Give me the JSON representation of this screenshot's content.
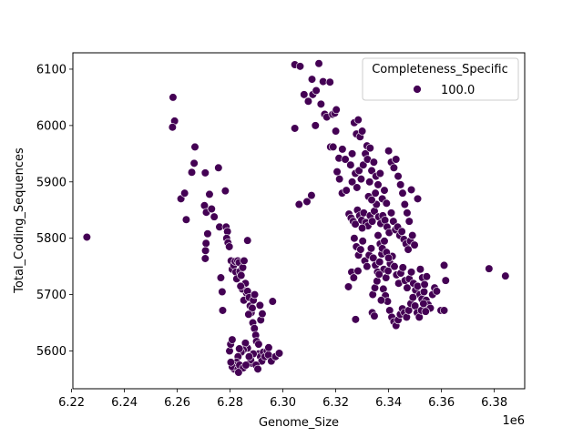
{
  "chart_data": {
    "type": "scatter",
    "xlabel": "Genome_Size",
    "ylabel": "Total_Coding_Sequences",
    "x_offset_label": "1e6",
    "x_scale": 1000000,
    "xlim": [
      6.2205,
      6.3915
    ],
    "ylim": [
      5533,
      6129
    ],
    "x_ticks": [
      6.22,
      6.24,
      6.26,
      6.28,
      6.3,
      6.32,
      6.34,
      6.36,
      6.38
    ],
    "x_tick_labels": [
      "6.22",
      "6.24",
      "6.26",
      "6.28",
      "6.30",
      "6.32",
      "6.34",
      "6.36",
      "6.38"
    ],
    "y_ticks": [
      5600,
      5700,
      5800,
      5900,
      6000,
      6100
    ],
    "y_tick_labels": [
      "5600",
      "5700",
      "5800",
      "5900",
      "6000",
      "6100"
    ],
    "grid": false,
    "legend": {
      "placement": "top-right",
      "title": "Completeness_Specific",
      "entries": [
        {
          "label": "100.0",
          "color": "#440154"
        }
      ]
    },
    "series": [
      {
        "name": "100.0",
        "color": "#440154",
        "points": [
          [
            6.2258,
            5802
          ],
          [
            6.2584,
            6050
          ],
          [
            6.259,
            6008
          ],
          [
            6.2582,
            5997
          ],
          [
            6.2614,
            5870
          ],
          [
            6.2628,
            5880
          ],
          [
            6.2634,
            5833
          ],
          [
            6.2655,
            5917
          ],
          [
            6.2664,
            5933
          ],
          [
            6.2667,
            5962
          ],
          [
            6.2703,
            5858
          ],
          [
            6.2706,
            5916
          ],
          [
            6.271,
            5846
          ],
          [
            6.2715,
            5808
          ],
          [
            6.2709,
            5791
          ],
          [
            6.2707,
            5778
          ],
          [
            6.2706,
            5764
          ],
          [
            6.2722,
            5878
          ],
          [
            6.273,
            5852
          ],
          [
            6.274,
            5838
          ],
          [
            6.2756,
            5925
          ],
          [
            6.276,
            5820
          ],
          [
            6.2765,
            5730
          ],
          [
            6.277,
            5705
          ],
          [
            6.2772,
            5672
          ],
          [
            6.2782,
            5884
          ],
          [
            6.2785,
            5820
          ],
          [
            6.279,
            5812
          ],
          [
            6.2787,
            5800
          ],
          [
            6.2792,
            5792
          ],
          [
            6.2797,
            5785
          ],
          [
            6.2804,
            5760
          ],
          [
            6.2808,
            5745
          ],
          [
            6.2814,
            5752
          ],
          [
            6.2819,
            5759
          ],
          [
            6.2822,
            5740
          ],
          [
            6.2825,
            5728
          ],
          [
            6.2829,
            5760
          ],
          [
            6.2834,
            5757
          ],
          [
            6.2837,
            5741
          ],
          [
            6.2842,
            5734
          ],
          [
            6.2848,
            5748
          ],
          [
            6.2853,
            5760
          ],
          [
            6.2858,
            5720
          ],
          [
            6.2866,
            5796
          ],
          [
            6.2862,
            5703
          ],
          [
            6.2846,
            5710
          ],
          [
            6.284,
            5715
          ],
          [
            6.2852,
            5690
          ],
          [
            6.2866,
            5706
          ],
          [
            6.2872,
            5695
          ],
          [
            6.2876,
            5680
          ],
          [
            6.288,
            5668
          ],
          [
            6.2884,
            5676
          ],
          [
            6.2888,
            5690
          ],
          [
            6.2893,
            5700
          ],
          [
            6.287,
            5665
          ],
          [
            6.2886,
            5650
          ],
          [
            6.2892,
            5640
          ],
          [
            6.2897,
            5628
          ],
          [
            6.29,
            5617
          ],
          [
            6.2908,
            5612
          ],
          [
            6.2913,
            5681
          ],
          [
            6.2916,
            5655
          ],
          [
            6.2922,
            5666
          ],
          [
            6.2908,
            5595
          ],
          [
            6.2915,
            5590
          ],
          [
            6.292,
            5582
          ],
          [
            6.2926,
            5598
          ],
          [
            6.2932,
            5590
          ],
          [
            6.294,
            5600
          ],
          [
            6.2945,
            5593
          ],
          [
            6.2888,
            5595
          ],
          [
            6.2884,
            5578
          ],
          [
            6.2878,
            5584
          ],
          [
            6.2872,
            5590
          ],
          [
            6.2866,
            5605
          ],
          [
            6.2858,
            5614
          ],
          [
            6.285,
            5602
          ],
          [
            6.2842,
            5598
          ],
          [
            6.2835,
            5604
          ],
          [
            6.283,
            5590
          ],
          [
            6.2825,
            5580
          ],
          [
            6.282,
            5574
          ],
          [
            6.2815,
            5568
          ],
          [
            6.2808,
            5572
          ],
          [
            6.2803,
            5580
          ],
          [
            6.2798,
            5600
          ],
          [
            6.2802,
            5612
          ],
          [
            6.2808,
            5620
          ],
          [
            6.283,
            5568
          ],
          [
            6.2836,
            5575
          ],
          [
            6.285,
            5570
          ],
          [
            6.286,
            5575
          ],
          [
            6.2898,
            5575
          ],
          [
            6.2905,
            5568
          ],
          [
            6.2956,
            5582
          ],
          [
            6.2972,
            5590
          ],
          [
            6.2986,
            5596
          ],
          [
            6.2961,
            5688
          ],
          [
            6.2946,
            5606
          ],
          [
            6.2832,
            5562
          ],
          [
            6.3045,
            6108
          ],
          [
            6.3065,
            6105
          ],
          [
            6.308,
            6055
          ],
          [
            6.3096,
            6043
          ],
          [
            6.311,
            6082
          ],
          [
            6.3113,
            6055
          ],
          [
            6.3126,
            6062
          ],
          [
            6.3136,
            6110
          ],
          [
            6.3144,
            6038
          ],
          [
            6.3152,
            6078
          ],
          [
            6.3158,
            6020
          ],
          [
            6.3166,
            6015
          ],
          [
            6.3178,
            6077
          ],
          [
            6.3188,
            6020
          ],
          [
            6.3196,
            6022
          ],
          [
            6.3202,
            6028
          ],
          [
            6.3123,
            6000
          ],
          [
            6.3045,
            5995
          ],
          [
            6.3061,
            5860
          ],
          [
            6.3091,
            5865
          ],
          [
            6.3108,
            5876
          ],
          [
            6.318,
            5962
          ],
          [
            6.319,
            5962
          ],
          [
            6.32,
            5990
          ],
          [
            6.3212,
            5942
          ],
          [
            6.3225,
            5958
          ],
          [
            6.3236,
            5940
          ],
          [
            6.3205,
            5918
          ],
          [
            6.3214,
            5905
          ],
          [
            6.3224,
            5880
          ],
          [
            6.324,
            5885
          ],
          [
            6.3256,
            5930
          ],
          [
            6.3262,
            5950
          ],
          [
            6.327,
            6005
          ],
          [
            6.3278,
            5985
          ],
          [
            6.3285,
            6010
          ],
          [
            6.3292,
            5980
          ],
          [
            6.33,
            5990
          ],
          [
            6.3262,
            5900
          ],
          [
            6.3274,
            5915
          ],
          [
            6.328,
            5890
          ],
          [
            6.3288,
            5920
          ],
          [
            6.3296,
            5905
          ],
          [
            6.3304,
            5930
          ],
          [
            6.3312,
            5950
          ],
          [
            6.332,
            5940
          ],
          [
            6.3328,
            5900
          ],
          [
            6.3336,
            5920
          ],
          [
            6.3344,
            5935
          ],
          [
            6.3352,
            5910
          ],
          [
            6.336,
            5895
          ],
          [
            6.3368,
            5915
          ],
          [
            6.325,
            5843
          ],
          [
            6.3258,
            5836
          ],
          [
            6.3266,
            5830
          ],
          [
            6.3274,
            5825
          ],
          [
            6.3282,
            5850
          ],
          [
            6.329,
            5840
          ],
          [
            6.3298,
            5832
          ],
          [
            6.3306,
            5845
          ],
          [
            6.3314,
            5828
          ],
          [
            6.3322,
            5822
          ],
          [
            6.333,
            5840
          ],
          [
            6.3338,
            5830
          ],
          [
            6.3346,
            5848
          ],
          [
            6.3354,
            5860
          ],
          [
            6.3362,
            5838
          ],
          [
            6.337,
            5826
          ],
          [
            6.3378,
            5840
          ],
          [
            6.3386,
            5832
          ],
          [
            6.3394,
            5820
          ],
          [
            6.3402,
            5810
          ],
          [
            6.341,
            5845
          ],
          [
            6.3418,
            5830
          ],
          [
            6.3426,
            5815
          ],
          [
            6.3434,
            5820
          ],
          [
            6.3442,
            5805
          ],
          [
            6.345,
            5812
          ],
          [
            6.3458,
            5798
          ],
          [
            6.3466,
            5790
          ],
          [
            6.3474,
            5780
          ],
          [
            6.3482,
            5795
          ],
          [
            6.349,
            5805
          ],
          [
            6.3498,
            5788
          ],
          [
            6.327,
            5800
          ],
          [
            6.3278,
            5785
          ],
          [
            6.3286,
            5770
          ],
          [
            6.3294,
            5780
          ],
          [
            6.3302,
            5795
          ],
          [
            6.331,
            5760
          ],
          [
            6.3318,
            5750
          ],
          [
            6.3326,
            5770
          ],
          [
            6.3334,
            5782
          ],
          [
            6.3342,
            5765
          ],
          [
            6.335,
            5752
          ],
          [
            6.3358,
            5740
          ],
          [
            6.3366,
            5758
          ],
          [
            6.3374,
            5772
          ],
          [
            6.3382,
            5745
          ],
          [
            6.339,
            5730
          ],
          [
            6.3398,
            5742
          ],
          [
            6.3406,
            5755
          ],
          [
            6.3414,
            5768
          ],
          [
            6.3422,
            5750
          ],
          [
            6.343,
            5735
          ],
          [
            6.3438,
            5720
          ],
          [
            6.3446,
            5738
          ],
          [
            6.3454,
            5748
          ],
          [
            6.3462,
            5725
          ],
          [
            6.347,
            5712
          ],
          [
            6.3478,
            5728
          ],
          [
            6.3486,
            5740
          ],
          [
            6.3494,
            5720
          ],
          [
            6.3502,
            5708
          ],
          [
            6.351,
            5715
          ],
          [
            6.3518,
            5700
          ],
          [
            6.3526,
            5692
          ],
          [
            6.3534,
            5705
          ],
          [
            6.3542,
            5690
          ],
          [
            6.355,
            5682
          ],
          [
            6.3558,
            5676
          ],
          [
            6.3566,
            5700
          ],
          [
            6.3574,
            5712
          ],
          [
            6.3582,
            5706
          ],
          [
            6.3598,
            5672
          ],
          [
            6.361,
            5672
          ],
          [
            6.3616,
            5725
          ],
          [
            6.361,
            5752
          ],
          [
            6.326,
            5740
          ],
          [
            6.3268,
            5730
          ],
          [
            6.3284,
            5742
          ],
          [
            6.3248,
            5714
          ],
          [
            6.338,
            5710
          ],
          [
            6.3388,
            5698
          ],
          [
            6.3396,
            5688
          ],
          [
            6.3404,
            5672
          ],
          [
            6.3412,
            5660
          ],
          [
            6.342,
            5652
          ],
          [
            6.3428,
            5645
          ],
          [
            6.3436,
            5655
          ],
          [
            6.3444,
            5665
          ],
          [
            6.3452,
            5675
          ],
          [
            6.346,
            5668
          ],
          [
            6.3468,
            5660
          ],
          [
            6.3476,
            5672
          ],
          [
            6.3484,
            5684
          ],
          [
            6.3492,
            5695
          ],
          [
            6.35,
            5680
          ],
          [
            6.3508,
            5668
          ],
          [
            6.3516,
            5660
          ],
          [
            6.3524,
            5672
          ],
          [
            6.3532,
            5684
          ],
          [
            6.354,
            5670
          ],
          [
            6.3338,
            5668
          ],
          [
            6.3346,
            5662
          ],
          [
            6.3275,
            5656
          ],
          [
            6.34,
            5955
          ],
          [
            6.341,
            5935
          ],
          [
            6.342,
            5925
          ],
          [
            6.3428,
            5940
          ],
          [
            6.3436,
            5910
          ],
          [
            6.3445,
            5895
          ],
          [
            6.3453,
            5880
          ],
          [
            6.3461,
            5860
          ],
          [
            6.347,
            5845
          ],
          [
            6.3478,
            5830
          ],
          [
            6.3486,
            5886
          ],
          [
            6.351,
            5870
          ],
          [
            6.3318,
            5964
          ],
          [
            6.333,
            5960
          ],
          [
            6.3324,
            5874
          ],
          [
            6.3336,
            5868
          ],
          [
            6.335,
            5880
          ],
          [
            6.3376,
            5870
          ],
          [
            6.3384,
            5885
          ],
          [
            6.3392,
            5862
          ],
          [
            6.33,
            5818
          ],
          [
            6.336,
            5805
          ],
          [
            6.3368,
            5790
          ],
          [
            6.3376,
            5782
          ],
          [
            6.3384,
            5795
          ],
          [
            6.3392,
            5775
          ],
          [
            6.34,
            5765
          ],
          [
            6.352,
            5745
          ],
          [
            6.3528,
            5730
          ],
          [
            6.3536,
            5718
          ],
          [
            6.3544,
            5732
          ],
          [
            6.378,
            5746
          ],
          [
            6.3842,
            5733
          ],
          [
            6.334,
            5700
          ],
          [
            6.3348,
            5712
          ],
          [
            6.3356,
            5724
          ],
          [
            6.3364,
            5736
          ],
          [
            6.3372,
            5690
          ]
        ]
      }
    ]
  }
}
